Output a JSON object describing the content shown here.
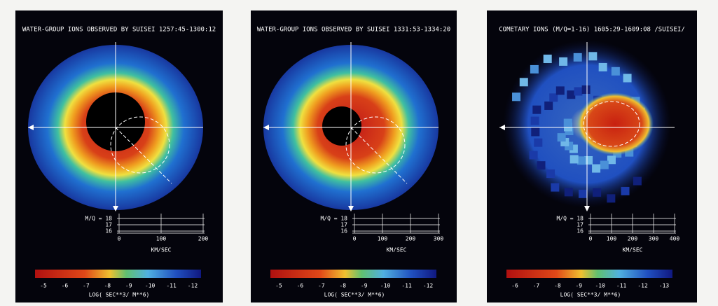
{
  "panels": [
    {
      "title": "WATER-GROUP IONS OBSERVED BY SUISEI 1257:45-1300:12",
      "mq_labels": [
        "M/Q = 18",
        "17",
        "16"
      ],
      "speed_ticks": [
        "0",
        "100",
        "200"
      ],
      "speed_unit": "KM/SEC",
      "colorbar_ticks": [
        "-5",
        "-6",
        "-7",
        "-8",
        "-9",
        "-10",
        "-11",
        "-12"
      ],
      "colorbar_label": "LOG( SEC**3/ M**6)"
    },
    {
      "title": "WATER-GROUP IONS OBSERVED BY SUISEI 1331:53-1334:20",
      "mq_labels": [
        "M/Q = 18",
        "17",
        "16"
      ],
      "speed_ticks": [
        "0",
        "100",
        "200",
        "300"
      ],
      "speed_unit": "KM/SEC",
      "colorbar_ticks": [
        "-5",
        "-6",
        "-7",
        "-8",
        "-9",
        "-10",
        "-11",
        "-12"
      ],
      "colorbar_label": "LOG( SEC**3/ M**6)"
    },
    {
      "title": "COMETARY IONS (M/Q=1-16) 1605:29-1609:08 /SUISEI/",
      "mq_labels": [
        "M/Q = 18",
        "17",
        "16"
      ],
      "speed_ticks": [
        "0",
        "100",
        "200",
        "300",
        "400"
      ],
      "speed_unit": "KM/SEC",
      "colorbar_ticks": [
        "-6",
        "-7",
        "-8",
        "-9",
        "-10",
        "-11",
        "-12",
        "-13"
      ],
      "colorbar_label": "LOG( SEC**3/ M**6)"
    }
  ]
}
